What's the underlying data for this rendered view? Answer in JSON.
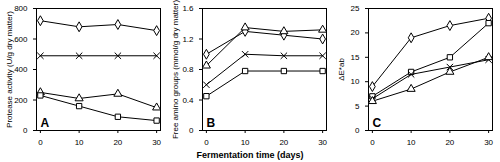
{
  "chart_data": [
    {
      "type": "line",
      "annotation": "A",
      "y_label": "Protease activity (U/g dry matter)",
      "x": [
        0,
        10,
        20,
        30
      ],
      "xlim": [
        -1,
        31
      ],
      "xticks": [
        0,
        10,
        20,
        30
      ],
      "ylim": [
        0,
        800
      ],
      "yticks": [
        0,
        200,
        400,
        600,
        800
      ],
      "series": [
        {
          "marker": "diamond",
          "color": "#000000",
          "values": [
            720,
            680,
            695,
            655
          ]
        },
        {
          "marker": "times",
          "color": "#000000",
          "values": [
            490,
            490,
            490,
            490
          ]
        },
        {
          "marker": "triangle",
          "color": "#000000",
          "values": [
            250,
            210,
            240,
            150
          ]
        },
        {
          "marker": "square",
          "color": "#000000",
          "values": [
            230,
            160,
            90,
            65
          ]
        }
      ]
    },
    {
      "type": "line",
      "annotation": "B",
      "y_label": "Free amino groups (mmol/g dry matter)",
      "x_label": "Fermentation time (days)",
      "x": [
        0,
        10,
        20,
        30
      ],
      "xlim": [
        -1,
        31
      ],
      "xticks": [
        0,
        10,
        20,
        30
      ],
      "ylim": [
        0,
        1.6
      ],
      "yticks": [
        0,
        0.4,
        0.8,
        1.2,
        1.6
      ],
      "series": [
        {
          "marker": "diamond",
          "color": "#000000",
          "values": [
            1.0,
            1.3,
            1.25,
            1.2
          ]
        },
        {
          "marker": "triangle",
          "color": "#000000",
          "values": [
            0.85,
            1.35,
            1.3,
            1.32
          ]
        },
        {
          "marker": "times",
          "color": "#000000",
          "values": [
            0.6,
            1.0,
            0.98,
            0.98
          ]
        },
        {
          "marker": "square",
          "color": "#000000",
          "values": [
            0.45,
            0.78,
            0.78,
            0.78
          ]
        }
      ]
    },
    {
      "type": "line",
      "annotation": "C",
      "y_label": "ΔE*ab",
      "x": [
        0,
        10,
        20,
        30
      ],
      "xlim": [
        -1,
        31
      ],
      "xticks": [
        0,
        10,
        20,
        30
      ],
      "ylim": [
        0,
        25
      ],
      "yticks": [
        0,
        5,
        10,
        15,
        20,
        25
      ],
      "series": [
        {
          "marker": "diamond",
          "color": "#000000",
          "values": [
            9,
            19,
            21.5,
            23
          ]
        },
        {
          "marker": "square",
          "color": "#000000",
          "values": [
            7,
            12,
            15,
            22
          ]
        },
        {
          "marker": "times",
          "color": "#000000",
          "values": [
            6.5,
            11.5,
            13,
            14.5
          ]
        },
        {
          "marker": "triangle",
          "color": "#000000",
          "values": [
            6,
            8.5,
            12,
            15
          ]
        }
      ]
    }
  ]
}
